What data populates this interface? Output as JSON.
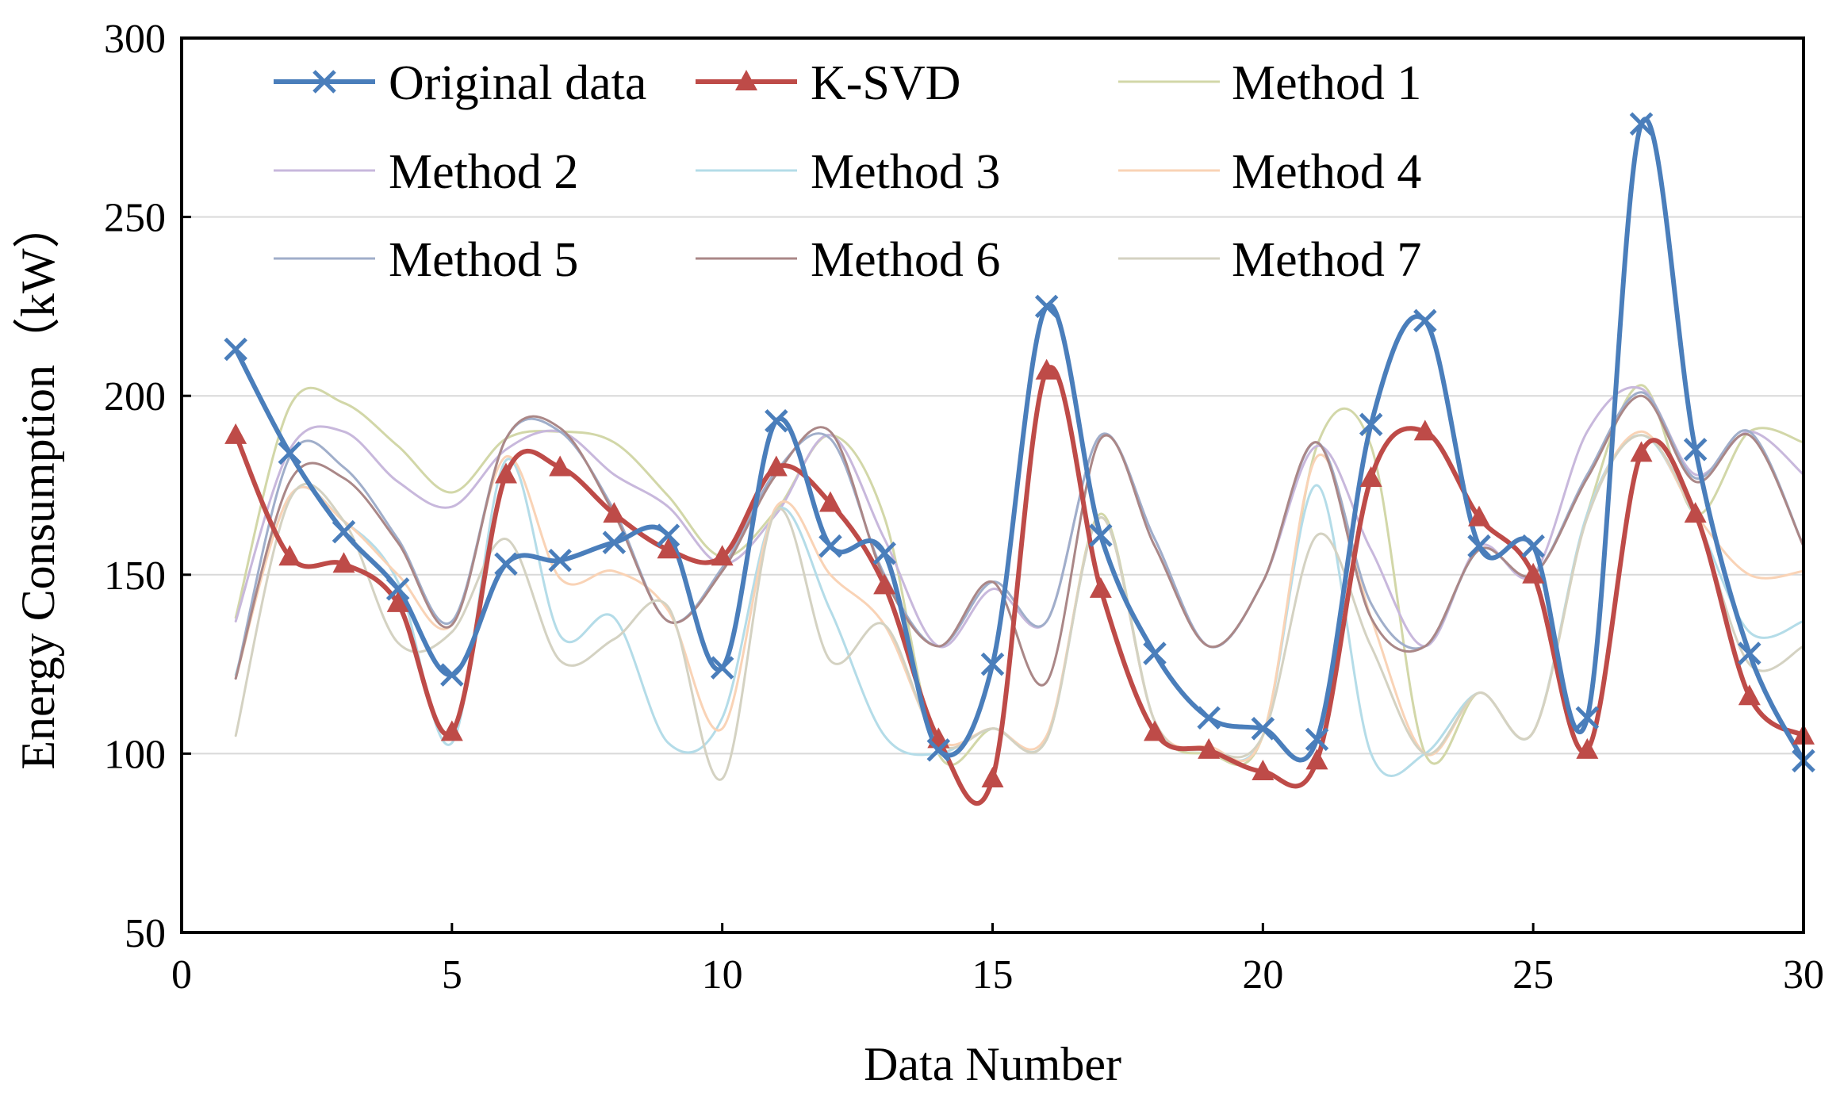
{
  "chart_data": {
    "type": "line",
    "title": "",
    "xlabel": "Data Number",
    "ylabel": "Energy Consumption（kW）",
    "xlim": [
      0,
      30
    ],
    "ylim": [
      50,
      300
    ],
    "xticks": [
      0,
      5,
      10,
      15,
      20,
      25,
      30
    ],
    "yticks": [
      50,
      100,
      150,
      200,
      250,
      300
    ],
    "grid": "horizontal",
    "legend_position": "top (inside plot, 3 columns)",
    "x": [
      1,
      2,
      3,
      4,
      5,
      6,
      7,
      8,
      9,
      10,
      11,
      12,
      13,
      14,
      15,
      16,
      17,
      18,
      19,
      20,
      21,
      22,
      23,
      24,
      25,
      26,
      27,
      28,
      29,
      30
    ],
    "series": [
      {
        "name": "Original data",
        "color": "#4A7EBB",
        "marker": "x",
        "emphasis": true,
        "values": [
          213,
          184,
          162,
          146,
          122,
          153,
          154,
          159,
          161,
          124,
          193,
          158,
          156,
          101,
          125,
          225,
          161,
          128,
          110,
          107,
          104,
          192,
          221,
          158,
          158,
          110,
          276,
          185,
          128,
          98
        ]
      },
      {
        "name": "K-SVD",
        "color": "#BE4B48",
        "marker": "triangle",
        "emphasis": true,
        "values": [
          189,
          155,
          153,
          142,
          106,
          178,
          180,
          167,
          157,
          155,
          180,
          170,
          147,
          104,
          93,
          207,
          146,
          106,
          101,
          95,
          98,
          177,
          190,
          166,
          150,
          101,
          184,
          167,
          116,
          105
        ]
      },
      {
        "name": "Method 1",
        "color": "#D2D7A8",
        "values": [
          138,
          197,
          198,
          186,
          173,
          188,
          190,
          187,
          172,
          155,
          168,
          189,
          166,
          100,
          107,
          104,
          167,
          109,
          100,
          105,
          186,
          186,
          100,
          117,
          106,
          167,
          203,
          167,
          190,
          187
        ]
      },
      {
        "name": "Method 2",
        "color": "#C8B8DC",
        "values": [
          137,
          185,
          190,
          176,
          169,
          185,
          190,
          178,
          169,
          153,
          167,
          189,
          160,
          130,
          146,
          137,
          189,
          160,
          130,
          148,
          186,
          157,
          130,
          158,
          150,
          190,
          202,
          178,
          190,
          178
        ]
      },
      {
        "name": "Method 3",
        "color": "#B4DCE8",
        "values": [
          122,
          172,
          165,
          148,
          103,
          182,
          133,
          138,
          103,
          110,
          168,
          140,
          105,
          100,
          107,
          104,
          166,
          109,
          101,
          105,
          175,
          100,
          100,
          117,
          106,
          167,
          189,
          166,
          134,
          137
        ]
      },
      {
        "name": "Method 4",
        "color": "#F9D3B6",
        "values": [
          121,
          172,
          165,
          150,
          136,
          183,
          149,
          151,
          140,
          107,
          169,
          150,
          136,
          104,
          107,
          105,
          166,
          109,
          102,
          105,
          183,
          138,
          100,
          117,
          106,
          166,
          190,
          167,
          150,
          151
        ]
      },
      {
        "name": "Method 5",
        "color": "#A0AECA",
        "values": [
          121,
          183,
          180,
          160,
          137,
          188,
          190,
          168,
          137,
          152,
          179,
          188,
          150,
          130,
          148,
          137,
          189,
          160,
          130,
          148,
          187,
          142,
          130,
          157,
          150,
          178,
          201,
          177,
          190,
          158
        ]
      },
      {
        "name": "Method 6",
        "color": "#AA8787",
        "values": [
          121,
          176,
          177,
          159,
          136,
          188,
          191,
          167,
          137,
          151,
          178,
          190,
          149,
          130,
          148,
          120,
          188,
          158,
          130,
          148,
          187,
          138,
          130,
          157,
          150,
          177,
          200,
          176,
          189,
          158
        ]
      },
      {
        "name": "Method 7",
        "color": "#D4D2C2",
        "values": [
          105,
          171,
          165,
          131,
          134,
          160,
          126,
          132,
          141,
          93,
          168,
          126,
          136,
          103,
          107,
          104,
          166,
          109,
          101,
          105,
          161,
          130,
          100,
          117,
          106,
          166,
          189,
          166,
          125,
          130
        ]
      }
    ]
  }
}
